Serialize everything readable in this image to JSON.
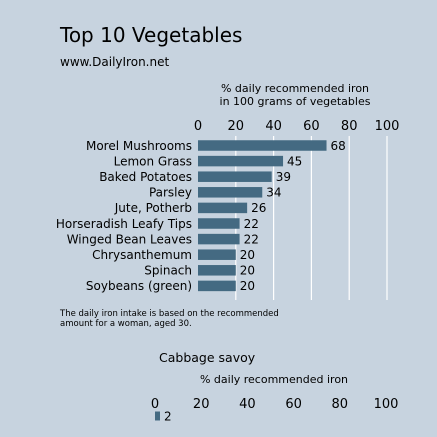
{
  "header": {
    "title": "Top 10 Vegetables",
    "source": "www.DailyIron.net"
  },
  "footnote": [
    "The daily iron intake is based on the recommended",
    "amount for a woman, aged 30."
  ],
  "colors": {
    "background": "#c7d3df",
    "bar": "#446a82",
    "gridline": "#ffffff"
  },
  "chart_data": [
    {
      "type": "bar",
      "orientation": "horizontal",
      "title": "",
      "xlabel_lines": [
        "% daily recommended iron",
        "in 100 grams of vegetables"
      ],
      "xlim": [
        0,
        100
      ],
      "xticks": [
        "0",
        "20",
        "40",
        "60",
        "80",
        "100"
      ],
      "grid": true,
      "categories": [
        "Morel Mushrooms",
        "Lemon Grass",
        "Baked Potatoes",
        "Parsley",
        "Jute, Potherb",
        "Horseradish Leafy Tips",
        "Winged Bean Leaves",
        "Chrysanthemum",
        "Spinach",
        "Soybeans (green)"
      ],
      "values": [
        68,
        45,
        39,
        34,
        26,
        22,
        22,
        20,
        20,
        20
      ]
    },
    {
      "type": "bar",
      "orientation": "horizontal",
      "title": "Cabbage savoy",
      "xlabel_lines": [
        "% daily recommended iron"
      ],
      "xlim": [
        0,
        100
      ],
      "xticks": [
        "0",
        "20",
        "40",
        "60",
        "80",
        "100"
      ],
      "grid": false,
      "categories": [
        ""
      ],
      "values": [
        2
      ]
    }
  ]
}
